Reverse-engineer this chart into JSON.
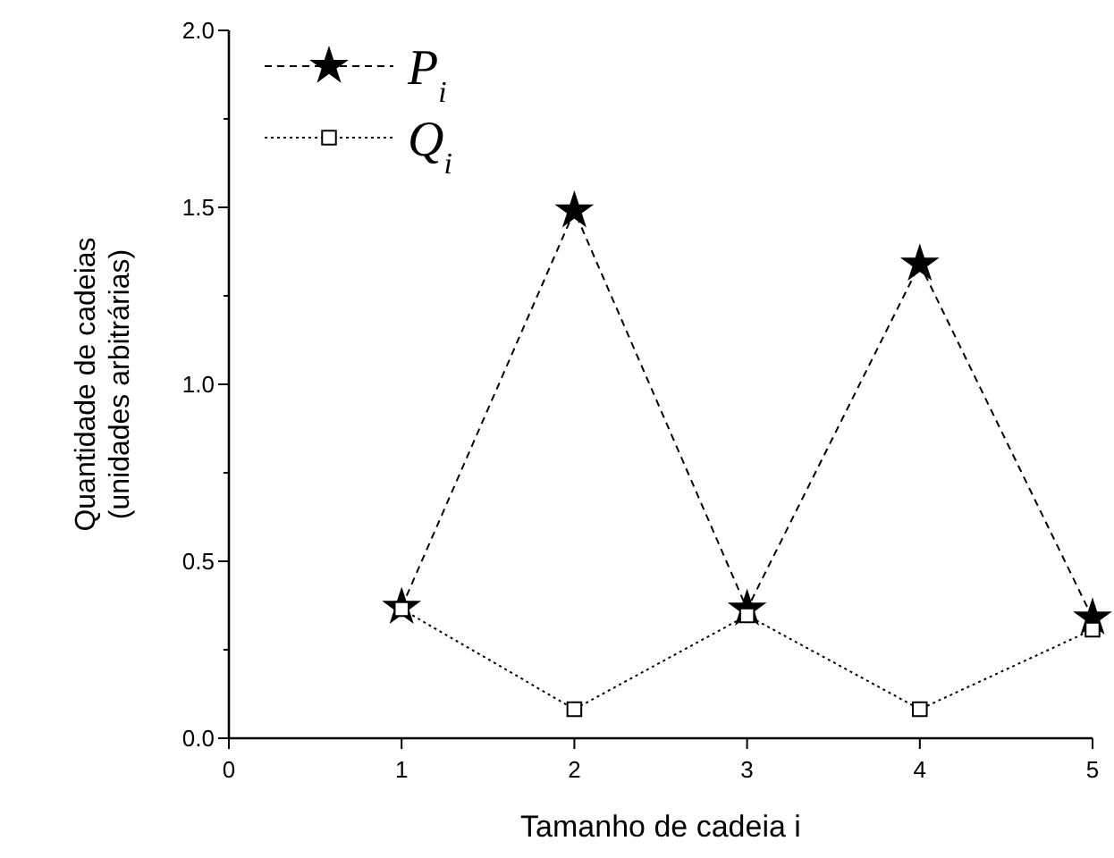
{
  "chart_data": {
    "type": "line",
    "xlabel": "Tamanho de cadeia i",
    "ylabel": "Quantidade de cadeias\n(unidades arbitrárias)",
    "x": [
      1,
      2,
      3,
      4,
      5
    ],
    "series": [
      {
        "name": "P$_{i}$",
        "color": "#000000",
        "marker": "star",
        "line_style": "dashed",
        "values": [
          0.37,
          1.49,
          0.365,
          1.34,
          0.34
        ]
      },
      {
        "name": "Q$_{i}$",
        "color": "#000000",
        "marker": "square",
        "line_style": "dotted",
        "values": [
          0.365,
          0.082,
          0.347,
          0.082,
          0.307
        ]
      }
    ],
    "xlim": [
      0,
      5
    ],
    "xticks": [
      0,
      1,
      2,
      3,
      4,
      5
    ],
    "ylim": [
      0,
      2
    ],
    "yticks": [
      {
        "value": 0,
        "label": "0.0"
      },
      {
        "value": 0.25,
        "label": null
      },
      {
        "value": 0.5,
        "label": "0.5"
      },
      {
        "value": 0.75,
        "label": null
      },
      {
        "value": 1,
        "label": "1.0"
      },
      {
        "value": 1.25,
        "label": null
      },
      {
        "value": 1.5,
        "label": "1.5"
      },
      {
        "value": 1.75,
        "label": null
      },
      {
        "value": 2,
        "label": "2.0"
      }
    ],
    "legend": "top left",
    "grid": false
  }
}
